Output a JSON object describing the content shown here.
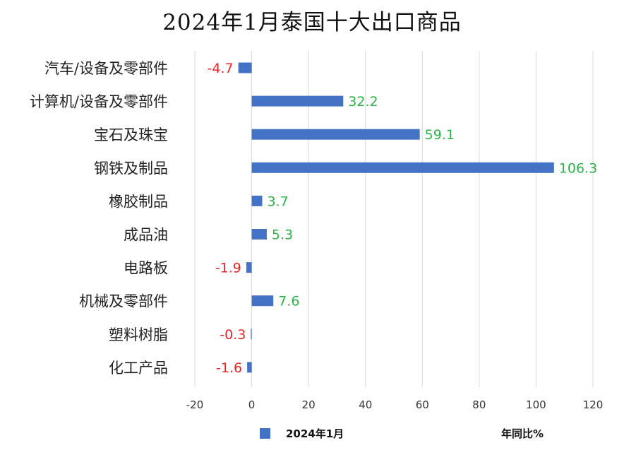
{
  "chart_data": {
    "type": "bar",
    "orientation": "horizontal",
    "title": "2024年1月泰国十大出口商品",
    "categories": [
      "汽车/设备及零部件",
      "计算机/设备及零部件",
      "宝石及珠宝",
      "钢铁及制品",
      "橡胶制品",
      "成品油",
      "电路板",
      "机械及零部件",
      "塑料树脂",
      "化工产品"
    ],
    "value_labels": [
      "-4.7",
      "32.2",
      "59.1",
      "106.3",
      "3.7",
      "5.3",
      "-1.9",
      "7.6",
      "-0.3",
      "-1.6"
    ],
    "series": [
      {
        "name": "2024年1月",
        "values": [
          -4.7,
          32.2,
          59.1,
          106.3,
          3.7,
          5.3,
          -1.9,
          7.6,
          -0.3,
          -1.6
        ]
      }
    ],
    "xlabel": "年同比%",
    "ylabel": "",
    "xlim": [
      -20,
      120
    ],
    "xticks": [
      "-20",
      "0",
      "20",
      "40",
      "60",
      "80",
      "100",
      "120"
    ],
    "grid": "vertical",
    "legend_position": "bottom",
    "colors": {
      "bar": "#4472c4",
      "positive_label": "#2db34a",
      "negative_label": "#e8262a",
      "grid": "#d9d9d9"
    }
  }
}
